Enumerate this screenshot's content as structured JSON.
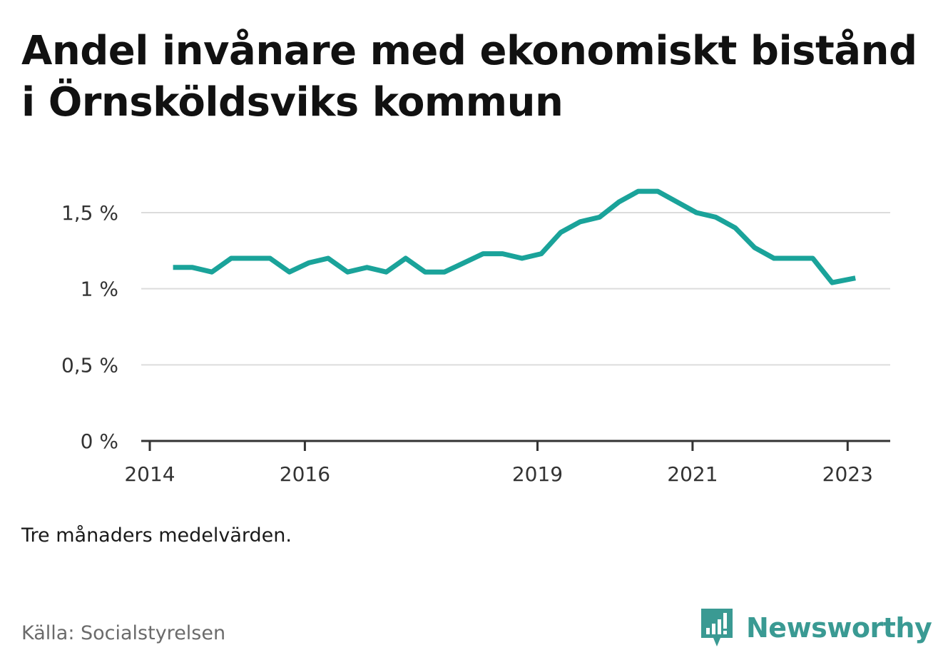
{
  "title": "Andel invånare med ekonomiskt bistånd i Örnsköldsviks kommun",
  "note": "Tre månaders medelvärden.",
  "source": "Källa: Socialstyrelsen",
  "brand": {
    "name": "Newsworthy",
    "icon": "newsworthy-logo-icon",
    "color": "#3a9a93"
  },
  "chart_data": {
    "type": "line",
    "color": "#1aa39a",
    "ylim": [
      0,
      1.75
    ],
    "y_ticks": [
      {
        "value": 0,
        "label": "0 %"
      },
      {
        "value": 0.5,
        "label": "0,5 %"
      },
      {
        "value": 1,
        "label": "1 %"
      },
      {
        "value": 1.5,
        "label": "1,5 %"
      }
    ],
    "xlim": [
      2014.0,
      2023.25
    ],
    "x_ticks": [
      {
        "value": 2014.0,
        "label": "2014"
      },
      {
        "value": 2016.0,
        "label": "2016"
      },
      {
        "value": 2019.0,
        "label": "2019"
      },
      {
        "value": 2021.0,
        "label": "2021"
      },
      {
        "value": 2023.0,
        "label": "2023"
      }
    ],
    "grid": true,
    "series": [
      {
        "x": [
          2014.3,
          2014.55,
          2014.8,
          2015.05,
          2015.3,
          2015.55,
          2015.8,
          2016.05,
          2016.3,
          2016.55,
          2016.8,
          2017.05,
          2017.3,
          2017.55,
          2017.8,
          2018.05,
          2018.3,
          2018.55,
          2018.8,
          2019.05,
          2019.3,
          2019.55,
          2019.8,
          2020.05,
          2020.3,
          2020.55,
          2020.8,
          2021.05,
          2021.3,
          2021.55,
          2021.8,
          2022.05,
          2022.3,
          2022.55,
          2022.8,
          2023.1
        ],
        "y": [
          1.14,
          1.14,
          1.11,
          1.2,
          1.2,
          1.2,
          1.11,
          1.17,
          1.2,
          1.11,
          1.14,
          1.11,
          1.2,
          1.11,
          1.11,
          1.17,
          1.23,
          1.23,
          1.2,
          1.23,
          1.37,
          1.44,
          1.47,
          1.57,
          1.64,
          1.64,
          1.57,
          1.5,
          1.47,
          1.4,
          1.27,
          1.2,
          1.2,
          1.2,
          1.04,
          1.07
        ]
      }
    ]
  }
}
